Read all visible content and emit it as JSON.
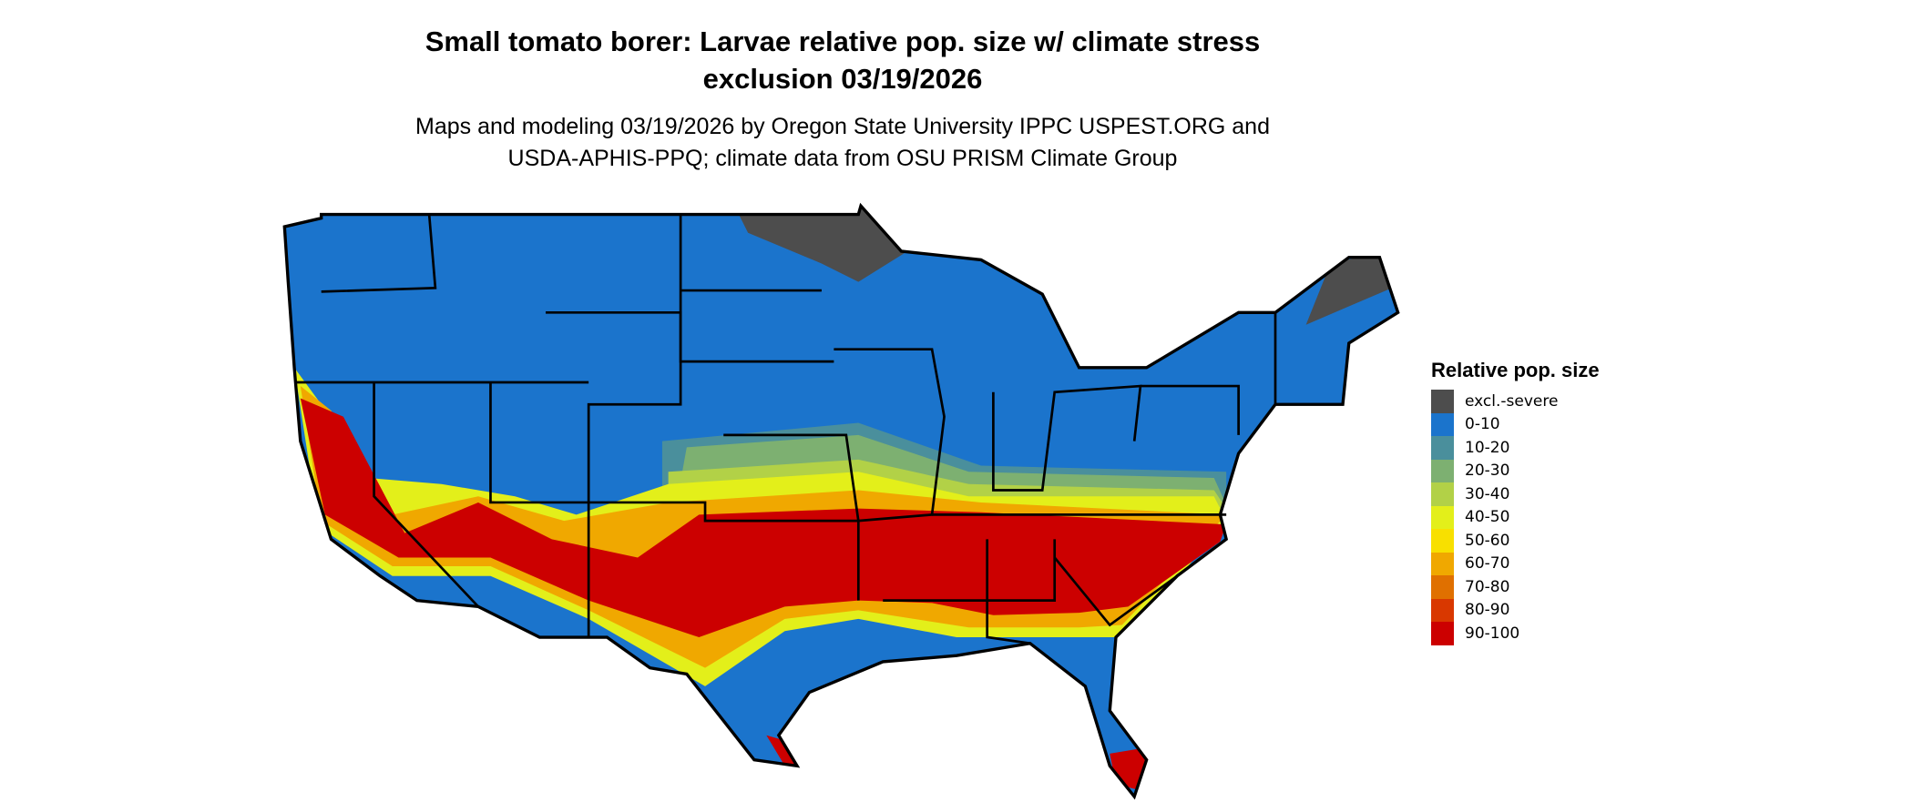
{
  "title": {
    "line1": "Small tomato borer: Larvae relative pop. size w/ climate stress",
    "line2": "exclusion 03/19/2026"
  },
  "subtitle": {
    "line1": "Maps and modeling 03/19/2026 by Oregon State University IPPC USPEST.ORG and",
    "line2": "USDA-APHIS-PPQ; climate data from OSU PRISM Climate Group"
  },
  "legend": {
    "title": "Relative pop. size",
    "items": [
      {
        "label": "excl.-severe",
        "color": "#4d4d4d"
      },
      {
        "label": "0-10",
        "color": "#1b74cc"
      },
      {
        "label": "10-20",
        "color": "#4a8f9c"
      },
      {
        "label": "20-30",
        "color": "#7db071"
      },
      {
        "label": "30-40",
        "color": "#b2d147"
      },
      {
        "label": "40-50",
        "color": "#e3ef1a"
      },
      {
        "label": "50-60",
        "color": "#f8e000"
      },
      {
        "label": "60-70",
        "color": "#f0a800"
      },
      {
        "label": "70-80",
        "color": "#e07000"
      },
      {
        "label": "80-90",
        "color": "#d93800"
      },
      {
        "label": "90-100",
        "color": "#cc0000"
      }
    ]
  },
  "map": {
    "region": "Contiguous United States",
    "boundaries": "state borders"
  }
}
